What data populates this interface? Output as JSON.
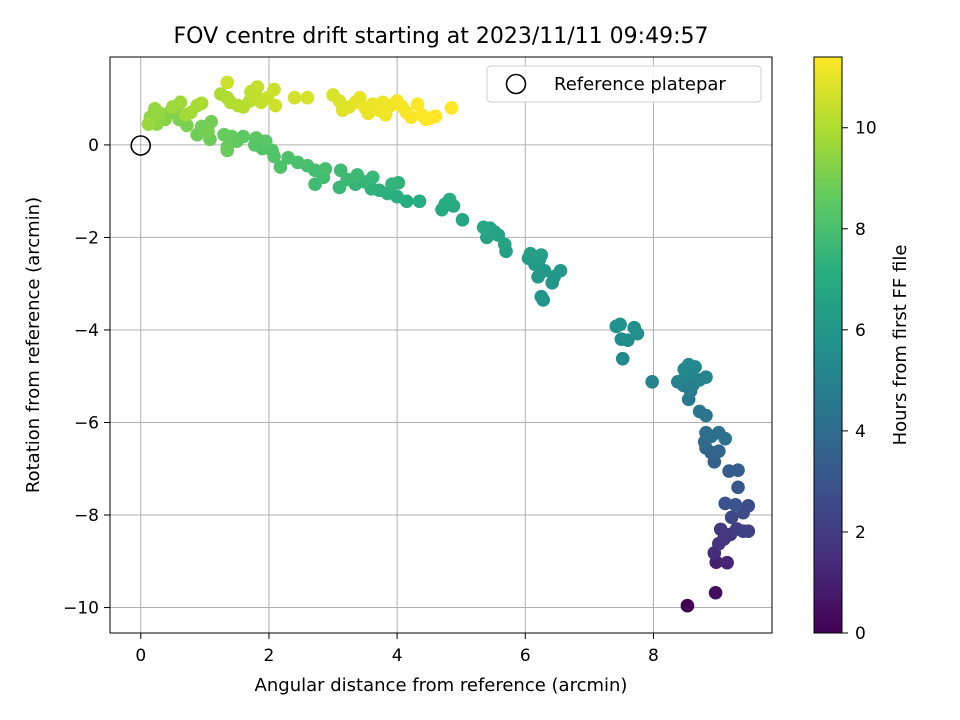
{
  "chart_data": {
    "type": "scatter",
    "title": "FOV centre drift starting at 2023/11/11 09:49:57",
    "xlabel": "Angular distance from reference (arcmin)",
    "ylabel": "Rotation from reference (arcmin)",
    "xlim": [
      -0.48,
      9.85
    ],
    "ylim": [
      -10.55,
      1.9
    ],
    "xticks": [
      0,
      2,
      4,
      6,
      8
    ],
    "yticks": [
      -10,
      -8,
      -6,
      -4,
      -2,
      0
    ],
    "grid": true,
    "legend": {
      "placement": "top-right",
      "entries": [
        "Reference platepar"
      ]
    },
    "reference_point": {
      "x": 0,
      "y": 0,
      "label": "Reference platepar"
    },
    "colorbar": {
      "label": "Hours from first FF file",
      "range": [
        0,
        11.4
      ],
      "ticks": [
        0,
        2,
        4,
        6,
        8,
        10
      ],
      "colormap": "viridis"
    },
    "series": [
      {
        "color_by": "t",
        "points": [
          {
            "x": 8.53,
            "y": -9.96,
            "t": 0.0
          },
          {
            "x": 8.97,
            "y": -9.68,
            "t": 0.4
          },
          {
            "x": 8.98,
            "y": -9.02,
            "t": 1.0
          },
          {
            "x": 9.15,
            "y": -9.03,
            "t": 1.2
          },
          {
            "x": 8.95,
            "y": -8.82,
            "t": 1.4
          },
          {
            "x": 9.02,
            "y": -8.62,
            "t": 1.6
          },
          {
            "x": 9.1,
            "y": -8.52,
            "t": 1.7
          },
          {
            "x": 9.2,
            "y": -8.42,
            "t": 1.8
          },
          {
            "x": 9.05,
            "y": -8.31,
            "t": 1.9
          },
          {
            "x": 9.3,
            "y": -8.3,
            "t": 2.0
          },
          {
            "x": 9.4,
            "y": -8.35,
            "t": 2.1
          },
          {
            "x": 9.48,
            "y": -8.35,
            "t": 2.2
          },
          {
            "x": 9.22,
            "y": -8.05,
            "t": 2.4
          },
          {
            "x": 9.4,
            "y": -7.95,
            "t": 2.6
          },
          {
            "x": 9.48,
            "y": -7.8,
            "t": 2.7
          },
          {
            "x": 9.12,
            "y": -7.75,
            "t": 2.8
          },
          {
            "x": 9.28,
            "y": -7.78,
            "t": 2.9
          },
          {
            "x": 9.32,
            "y": -7.4,
            "t": 3.1
          },
          {
            "x": 9.18,
            "y": -7.05,
            "t": 3.3
          },
          {
            "x": 9.32,
            "y": -7.03,
            "t": 3.4
          },
          {
            "x": 8.95,
            "y": -6.85,
            "t": 3.5
          },
          {
            "x": 8.9,
            "y": -6.65,
            "t": 3.6
          },
          {
            "x": 8.82,
            "y": -6.55,
            "t": 3.7
          },
          {
            "x": 9.02,
            "y": -6.62,
            "t": 3.8
          },
          {
            "x": 8.8,
            "y": -6.42,
            "t": 3.9
          },
          {
            "x": 8.9,
            "y": -6.3,
            "t": 4.0
          },
          {
            "x": 8.82,
            "y": -6.22,
            "t": 4.1
          },
          {
            "x": 9.02,
            "y": -6.22,
            "t": 4.2
          },
          {
            "x": 9.12,
            "y": -6.35,
            "t": 4.3
          },
          {
            "x": 8.82,
            "y": -5.85,
            "t": 4.4
          },
          {
            "x": 8.72,
            "y": -5.76,
            "t": 4.5
          },
          {
            "x": 8.55,
            "y": -5.5,
            "t": 4.6
          },
          {
            "x": 8.58,
            "y": -5.32,
            "t": 4.7
          },
          {
            "x": 8.47,
            "y": -5.2,
            "t": 4.8
          },
          {
            "x": 8.62,
            "y": -5.18,
            "t": 4.85
          },
          {
            "x": 8.38,
            "y": -5.12,
            "t": 4.9
          },
          {
            "x": 7.98,
            "y": -5.12,
            "t": 5.0
          },
          {
            "x": 8.72,
            "y": -5.08,
            "t": 5.05
          },
          {
            "x": 8.82,
            "y": -5.02,
            "t": 5.1
          },
          {
            "x": 8.5,
            "y": -5.0,
            "t": 5.15
          },
          {
            "x": 8.58,
            "y": -4.92,
            "t": 5.2
          },
          {
            "x": 8.65,
            "y": -4.8,
            "t": 5.25
          },
          {
            "x": 8.55,
            "y": -4.75,
            "t": 5.3
          },
          {
            "x": 8.48,
            "y": -4.85,
            "t": 5.35
          },
          {
            "x": 7.52,
            "y": -4.62,
            "t": 5.4
          },
          {
            "x": 7.5,
            "y": -4.2,
            "t": 5.5
          },
          {
            "x": 7.6,
            "y": -4.22,
            "t": 5.55
          },
          {
            "x": 7.75,
            "y": -4.08,
            "t": 5.6
          },
          {
            "x": 7.7,
            "y": -3.95,
            "t": 5.65
          },
          {
            "x": 7.42,
            "y": -3.92,
            "t": 5.7
          },
          {
            "x": 7.48,
            "y": -3.88,
            "t": 5.75
          },
          {
            "x": 6.28,
            "y": -3.35,
            "t": 5.85
          },
          {
            "x": 6.25,
            "y": -3.28,
            "t": 5.9
          },
          {
            "x": 6.42,
            "y": -2.98,
            "t": 5.95
          },
          {
            "x": 6.45,
            "y": -2.85,
            "t": 6.0
          },
          {
            "x": 6.2,
            "y": -2.85,
            "t": 6.05
          },
          {
            "x": 6.55,
            "y": -2.72,
            "t": 6.1
          },
          {
            "x": 6.3,
            "y": -2.72,
            "t": 6.15
          },
          {
            "x": 6.15,
            "y": -2.58,
            "t": 6.2
          },
          {
            "x": 6.22,
            "y": -2.48,
            "t": 6.25
          },
          {
            "x": 6.05,
            "y": -2.45,
            "t": 6.3
          },
          {
            "x": 6.25,
            "y": -2.38,
            "t": 6.35
          },
          {
            "x": 6.08,
            "y": -2.35,
            "t": 6.4
          },
          {
            "x": 5.7,
            "y": -2.3,
            "t": 6.45
          },
          {
            "x": 5.68,
            "y": -2.15,
            "t": 6.5
          },
          {
            "x": 5.58,
            "y": -1.95,
            "t": 6.55
          },
          {
            "x": 5.4,
            "y": -2.0,
            "t": 6.6
          },
          {
            "x": 5.52,
            "y": -1.88,
            "t": 6.65
          },
          {
            "x": 5.45,
            "y": -1.8,
            "t": 6.7
          },
          {
            "x": 5.35,
            "y": -1.78,
            "t": 6.75
          },
          {
            "x": 5.02,
            "y": -1.62,
            "t": 6.8
          },
          {
            "x": 4.88,
            "y": -1.32,
            "t": 6.85
          },
          {
            "x": 4.75,
            "y": -1.28,
            "t": 6.9
          },
          {
            "x": 4.7,
            "y": -1.4,
            "t": 6.95
          },
          {
            "x": 4.82,
            "y": -1.18,
            "t": 7.0
          },
          {
            "x": 4.35,
            "y": -1.22,
            "t": 7.05
          },
          {
            "x": 4.15,
            "y": -1.22,
            "t": 7.1
          },
          {
            "x": 4.0,
            "y": -1.12,
            "t": 7.15
          },
          {
            "x": 3.85,
            "y": -1.05,
            "t": 7.2
          },
          {
            "x": 3.72,
            "y": -0.98,
            "t": 7.25
          },
          {
            "x": 3.6,
            "y": -0.95,
            "t": 7.3
          },
          {
            "x": 4.02,
            "y": -0.82,
            "t": 7.35
          },
          {
            "x": 3.92,
            "y": -0.85,
            "t": 7.4
          },
          {
            "x": 3.35,
            "y": -0.85,
            "t": 7.45
          },
          {
            "x": 3.5,
            "y": -0.8,
            "t": 7.5
          },
          {
            "x": 3.62,
            "y": -0.7,
            "t": 7.55
          },
          {
            "x": 3.1,
            "y": -0.92,
            "t": 7.6
          },
          {
            "x": 3.22,
            "y": -0.75,
            "t": 7.65
          },
          {
            "x": 3.38,
            "y": -0.65,
            "t": 7.7
          },
          {
            "x": 3.12,
            "y": -0.55,
            "t": 7.75
          },
          {
            "x": 2.72,
            "y": -0.85,
            "t": 7.8
          },
          {
            "x": 2.85,
            "y": -0.7,
            "t": 7.85
          },
          {
            "x": 2.72,
            "y": -0.55,
            "t": 7.9
          },
          {
            "x": 2.88,
            "y": -0.52,
            "t": 7.95
          },
          {
            "x": 2.6,
            "y": -0.45,
            "t": 8.0
          },
          {
            "x": 2.45,
            "y": -0.38,
            "t": 8.05
          },
          {
            "x": 2.3,
            "y": -0.28,
            "t": 8.1
          },
          {
            "x": 2.18,
            "y": -0.48,
            "t": 8.15
          },
          {
            "x": 2.08,
            "y": -0.25,
            "t": 8.2
          },
          {
            "x": 2.05,
            "y": -0.12,
            "t": 8.25
          },
          {
            "x": 1.9,
            "y": -0.08,
            "t": 8.3
          },
          {
            "x": 1.78,
            "y": 0.0,
            "t": 8.35
          },
          {
            "x": 1.95,
            "y": 0.08,
            "t": 8.4
          },
          {
            "x": 1.8,
            "y": 0.15,
            "t": 8.45
          },
          {
            "x": 1.6,
            "y": 0.18,
            "t": 8.5
          },
          {
            "x": 1.5,
            "y": 0.08,
            "t": 8.55
          },
          {
            "x": 1.35,
            "y": -0.05,
            "t": 8.6
          },
          {
            "x": 1.42,
            "y": 0.18,
            "t": 8.65
          },
          {
            "x": 1.3,
            "y": 0.22,
            "t": 8.7
          },
          {
            "x": 1.35,
            "y": -0.12,
            "t": 8.75
          },
          {
            "x": 1.08,
            "y": 0.12,
            "t": 8.8
          },
          {
            "x": 0.88,
            "y": 0.22,
            "t": 8.85
          },
          {
            "x": 0.95,
            "y": 0.4,
            "t": 8.9
          },
          {
            "x": 1.1,
            "y": 0.5,
            "t": 8.95
          },
          {
            "x": 1.05,
            "y": 0.3,
            "t": 9.0
          },
          {
            "x": 0.72,
            "y": 0.42,
            "t": 9.05
          },
          {
            "x": 0.6,
            "y": 0.55,
            "t": 9.1
          },
          {
            "x": 0.55,
            "y": 0.72,
            "t": 9.15
          },
          {
            "x": 0.45,
            "y": 0.7,
            "t": 9.2
          },
          {
            "x": 0.38,
            "y": 0.55,
            "t": 9.25
          },
          {
            "x": 0.28,
            "y": 0.52,
            "t": 9.3
          },
          {
            "x": 0.25,
            "y": 0.45,
            "t": 9.35
          },
          {
            "x": 0.18,
            "y": 0.5,
            "t": 9.4
          },
          {
            "x": 0.15,
            "y": 0.6,
            "t": 9.45
          },
          {
            "x": 0.3,
            "y": 0.68,
            "t": 9.5
          },
          {
            "x": 0.22,
            "y": 0.78,
            "t": 9.55
          },
          {
            "x": 0.12,
            "y": 0.45,
            "t": 9.6
          },
          {
            "x": 0.5,
            "y": 0.82,
            "t": 9.65
          },
          {
            "x": 0.62,
            "y": 0.92,
            "t": 9.7
          },
          {
            "x": 0.7,
            "y": 0.65,
            "t": 9.75
          },
          {
            "x": 0.78,
            "y": 0.7,
            "t": 9.8
          },
          {
            "x": 0.88,
            "y": 0.85,
            "t": 9.85
          },
          {
            "x": 0.95,
            "y": 0.9,
            "t": 9.9
          },
          {
            "x": 1.25,
            "y": 1.1,
            "t": 9.95
          },
          {
            "x": 1.35,
            "y": 1.02,
            "t": 10.0
          },
          {
            "x": 1.4,
            "y": 0.92,
            "t": 10.05
          },
          {
            "x": 1.52,
            "y": 0.85,
            "t": 10.1
          },
          {
            "x": 1.6,
            "y": 0.82,
            "t": 10.15
          },
          {
            "x": 1.7,
            "y": 0.95,
            "t": 10.2
          },
          {
            "x": 1.8,
            "y": 1.05,
            "t": 10.25
          },
          {
            "x": 1.72,
            "y": 1.15,
            "t": 10.3
          },
          {
            "x": 1.82,
            "y": 1.25,
            "t": 10.35
          },
          {
            "x": 1.88,
            "y": 0.92,
            "t": 10.4
          },
          {
            "x": 1.98,
            "y": 1.02,
            "t": 10.45
          },
          {
            "x": 2.08,
            "y": 1.2,
            "t": 10.5
          },
          {
            "x": 1.35,
            "y": 1.35,
            "t": 10.55
          },
          {
            "x": 2.1,
            "y": 0.85,
            "t": 10.6
          },
          {
            "x": 2.4,
            "y": 1.02,
            "t": 10.65
          },
          {
            "x": 2.6,
            "y": 1.02,
            "t": 10.7
          },
          {
            "x": 3.0,
            "y": 1.08,
            "t": 10.75
          },
          {
            "x": 3.1,
            "y": 0.95,
            "t": 10.8
          },
          {
            "x": 3.15,
            "y": 0.75,
            "t": 10.85
          },
          {
            "x": 3.25,
            "y": 0.82,
            "t": 10.9
          },
          {
            "x": 3.35,
            "y": 0.92,
            "t": 10.95
          },
          {
            "x": 3.42,
            "y": 1.02,
            "t": 11.0
          },
          {
            "x": 3.5,
            "y": 0.8,
            "t": 11.02
          },
          {
            "x": 3.55,
            "y": 0.68,
            "t": 11.05
          },
          {
            "x": 3.62,
            "y": 0.88,
            "t": 11.08
          },
          {
            "x": 3.72,
            "y": 0.75,
            "t": 11.1
          },
          {
            "x": 3.78,
            "y": 0.92,
            "t": 11.13
          },
          {
            "x": 3.82,
            "y": 0.65,
            "t": 11.16
          },
          {
            "x": 3.9,
            "y": 0.85,
            "t": 11.19
          },
          {
            "x": 4.0,
            "y": 0.95,
            "t": 11.22
          },
          {
            "x": 4.08,
            "y": 0.82,
            "t": 11.25
          },
          {
            "x": 4.15,
            "y": 0.7,
            "t": 11.28
          },
          {
            "x": 4.22,
            "y": 0.6,
            "t": 11.31
          },
          {
            "x": 4.32,
            "y": 0.88,
            "t": 11.34
          },
          {
            "x": 4.38,
            "y": 0.65,
            "t": 11.36
          },
          {
            "x": 4.45,
            "y": 0.55,
            "t": 11.38
          },
          {
            "x": 4.52,
            "y": 0.58,
            "t": 11.39
          },
          {
            "x": 4.6,
            "y": 0.62,
            "t": 11.4
          },
          {
            "x": 4.85,
            "y": 0.8,
            "t": 11.4
          }
        ]
      }
    ]
  }
}
